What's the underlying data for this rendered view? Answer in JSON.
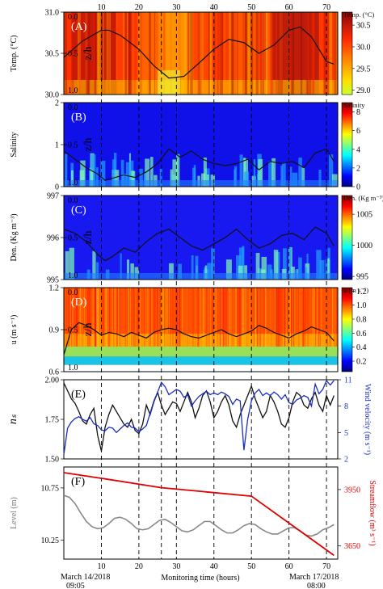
{
  "colors": {
    "heat": [
      "#8b0000",
      "#c41a0a",
      "#ff2a00",
      "#ff6a00",
      "#ffa500",
      "#ffe000",
      "#c8ff30"
    ],
    "jet": [
      "#00007f",
      "#0000ff",
      "#007fff",
      "#00ffff",
      "#7fff7f",
      "#ffff00",
      "#ff7f00",
      "#ff0000",
      "#7f0000"
    ],
    "overlay": "#111111",
    "ns_line": "#111111",
    "wind_line": "#1a2fbf",
    "level_line": "#888888",
    "streamflow_line": "#e00000"
  },
  "x_axis": {
    "ticks": [
      10,
      20,
      30,
      40,
      50,
      60,
      70
    ],
    "range": [
      0,
      73
    ],
    "label": "Monitoring time (hours)",
    "start_label": [
      "March 14/2018",
      "09:05"
    ],
    "end_label": [
      "March 17/2018",
      "08:00"
    ],
    "dashed_lines": [
      10,
      20,
      26,
      30,
      40,
      50,
      60,
      70
    ]
  },
  "chart_data": [
    {
      "type": "heatmap",
      "panel": "(A)",
      "left_ylabel": "Temp. (°C)",
      "left_ticks": [
        "31.0",
        "30.5",
        "30.0"
      ],
      "inner_ylabel": "z/h",
      "inner_ticks": [
        "0.0",
        "0.5",
        "1.0"
      ],
      "colorbar_title": "Temp. (°C)",
      "colorbar_ticks": [
        "30.5",
        "30.0",
        "29.5",
        "29.0"
      ],
      "colorbar_range": [
        28.9,
        30.8
      ],
      "overlay_ylim": [
        30.0,
        31.0
      ],
      "overlay_x": [
        0,
        5,
        10,
        12,
        15,
        20,
        24,
        28,
        32,
        36,
        40,
        44,
        48,
        52,
        56,
        60,
        63,
        66,
        70,
        72
      ],
      "overlay_y": [
        30.45,
        30.65,
        30.78,
        30.78,
        30.72,
        30.55,
        30.35,
        30.2,
        30.22,
        30.38,
        30.55,
        30.67,
        30.63,
        30.5,
        30.6,
        30.78,
        30.82,
        30.7,
        30.4,
        30.37
      ]
    },
    {
      "type": "heatmap",
      "panel": "(B)",
      "left_ylabel": "Salinity",
      "left_ticks": [
        "2",
        "1",
        "0"
      ],
      "inner_ylabel": "z/h",
      "inner_ticks": [
        "0.0",
        "0.5",
        "1.0"
      ],
      "colorbar_title": "Salinity",
      "colorbar_ticks": [
        "8",
        "6",
        "4",
        "2",
        "0"
      ],
      "colorbar_range": [
        0,
        9
      ],
      "overlay_ylim": [
        0,
        2
      ],
      "overlay_x": [
        0,
        3,
        6,
        9,
        11,
        13,
        16,
        19,
        22,
        25,
        28,
        31,
        34,
        37,
        40,
        43,
        46,
        49,
        52,
        55,
        58,
        61,
        64,
        67,
        70,
        72
      ],
      "overlay_y": [
        0.85,
        0.65,
        0.45,
        0.3,
        0.15,
        0.2,
        0.28,
        0.22,
        0.35,
        0.55,
        0.9,
        0.7,
        0.85,
        0.65,
        0.55,
        0.5,
        0.55,
        0.65,
        0.4,
        0.6,
        0.55,
        0.6,
        0.45,
        0.8,
        0.9,
        0.6
      ]
    },
    {
      "type": "heatmap",
      "panel": "(C)",
      "left_ylabel": "Den. (Kg m⁻³)",
      "left_ticks": [
        "997",
        "996",
        "995"
      ],
      "inner_ylabel": "z/h",
      "inner_ticks": [
        "0.0",
        "0.5",
        "1.0"
      ],
      "colorbar_title": "Den. (Kg m⁻³)",
      "colorbar_ticks": [
        "1005",
        "1000",
        "995"
      ],
      "colorbar_range": [
        994.5,
        1008
      ],
      "overlay_ylim": [
        995,
        997
      ],
      "overlay_x": [
        0,
        3,
        6,
        9,
        11,
        13,
        16,
        19,
        22,
        25,
        28,
        31,
        34,
        37,
        40,
        43,
        46,
        49,
        52,
        55,
        58,
        61,
        64,
        67,
        70,
        72
      ],
      "overlay_y": [
        996.2,
        996.1,
        995.9,
        995.6,
        995.45,
        995.55,
        995.75,
        995.65,
        995.9,
        996.1,
        996.2,
        996.0,
        995.8,
        995.7,
        995.85,
        996.0,
        996.2,
        995.95,
        995.75,
        995.85,
        996.05,
        996.1,
        995.95,
        996.25,
        996.1,
        995.8
      ]
    },
    {
      "type": "heatmap",
      "panel": "(D)",
      "left_ylabel": "u (m s⁻¹)",
      "left_ticks": [
        "1.2",
        "0.9",
        "0.6"
      ],
      "inner_ylabel": "z/h",
      "inner_ticks": [
        "0.0",
        "0.5",
        "1.0"
      ],
      "colorbar_title": "u (m s⁻¹)",
      "colorbar_ticks": [
        "1.2",
        "1.0",
        "0.8",
        "0.6",
        "0.4",
        "0.2"
      ],
      "colorbar_range": [
        0.05,
        1.25
      ],
      "overlay_ylim": [
        0.6,
        1.2
      ],
      "overlay_x": [
        0,
        2,
        4,
        6,
        8,
        10,
        12,
        14,
        16,
        18,
        20,
        22,
        24,
        26,
        28,
        30,
        32,
        34,
        36,
        38,
        40,
        42,
        44,
        46,
        48,
        50,
        52,
        54,
        56,
        58,
        60,
        62,
        64,
        66,
        68,
        70,
        72
      ],
      "overlay_y": [
        0.72,
        0.9,
        0.95,
        0.93,
        0.9,
        0.86,
        0.88,
        0.87,
        0.85,
        0.88,
        0.86,
        0.84,
        0.88,
        0.9,
        0.91,
        0.9,
        0.87,
        0.85,
        0.84,
        0.86,
        0.88,
        0.9,
        0.87,
        0.85,
        0.87,
        0.89,
        0.93,
        0.91,
        0.88,
        0.86,
        0.84,
        0.87,
        0.89,
        0.92,
        0.9,
        0.88,
        0.82
      ]
    },
    {
      "type": "line",
      "panel": "(E)",
      "left_ylabel": "nₛ",
      "left_ticks": [
        "2.00",
        "1.75",
        "1.50"
      ],
      "left_ylim": [
        1.5,
        2.0
      ],
      "right_ylabel": "Wind velocity (m s⁻¹)",
      "right_ticks": [
        "11",
        "8",
        "5",
        "2"
      ],
      "right_ylim": [
        2,
        11
      ],
      "series": [
        {
          "axis": "left",
          "x": [
            0,
            1,
            2,
            3,
            4,
            5,
            6,
            7,
            8,
            9,
            10,
            11,
            12,
            13,
            14,
            15,
            16,
            17,
            18,
            19,
            20,
            21,
            22,
            23,
            24,
            25,
            26,
            27,
            28,
            29,
            30,
            31,
            32,
            33,
            34,
            35,
            36,
            37,
            38,
            39,
            40,
            41,
            42,
            43,
            44,
            45,
            46,
            47,
            48,
            49,
            50,
            51,
            52,
            53,
            54,
            55,
            56,
            57,
            58,
            59,
            60,
            61,
            62,
            63,
            64,
            65,
            66,
            67,
            68,
            69,
            70,
            71,
            72
          ],
          "values": [
            1.98,
            1.93,
            1.88,
            1.85,
            1.8,
            1.74,
            1.72,
            1.78,
            1.82,
            1.65,
            1.55,
            1.7,
            1.78,
            1.84,
            1.8,
            1.76,
            1.72,
            1.7,
            1.75,
            1.68,
            1.66,
            1.72,
            1.84,
            1.78,
            1.86,
            1.92,
            1.84,
            1.78,
            1.82,
            1.86,
            1.85,
            1.8,
            1.86,
            1.92,
            1.86,
            1.76,
            1.82,
            1.9,
            1.93,
            1.86,
            1.76,
            1.8,
            1.86,
            1.9,
            1.84,
            1.74,
            1.7,
            1.78,
            1.84,
            1.9,
            1.96,
            1.88,
            1.82,
            1.76,
            1.8,
            1.9,
            1.86,
            1.8,
            1.72,
            1.7,
            1.76,
            1.86,
            1.92,
            1.9,
            1.84,
            1.82,
            1.88,
            1.92,
            1.84,
            1.8,
            1.9,
            1.84,
            1.9
          ]
        },
        {
          "axis": "right",
          "x": [
            0,
            1,
            2,
            3,
            4,
            5,
            6,
            7,
            8,
            9,
            10,
            11,
            12,
            13,
            14,
            15,
            16,
            17,
            18,
            19,
            20,
            21,
            22,
            23,
            24,
            25,
            26,
            27,
            28,
            29,
            30,
            31,
            32,
            33,
            34,
            35,
            36,
            37,
            38,
            39,
            40,
            41,
            42,
            43,
            44,
            45,
            46,
            47,
            48,
            49,
            50,
            51,
            52,
            53,
            54,
            55,
            56,
            57,
            58,
            59,
            60,
            61,
            62,
            63,
            64,
            65,
            66,
            67,
            68,
            69,
            70,
            71,
            72
          ],
          "values": [
            2.5,
            5.5,
            6.2,
            6.6,
            6.8,
            6.5,
            6.3,
            6.7,
            6.0,
            5.8,
            5.3,
            5.2,
            5.6,
            5.5,
            5.0,
            5.4,
            5.8,
            6.1,
            5.6,
            5.5,
            5.1,
            5.4,
            5.8,
            7.2,
            8.6,
            9.6,
            10.7,
            10.2,
            9.3,
            9.6,
            9.9,
            9.7,
            9.0,
            9.3,
            8.0,
            8.6,
            9.1,
            9.4,
            9.7,
            9.3,
            9.5,
            9.3,
            9.6,
            9.4,
            9.1,
            8.2,
            8.8,
            8.6,
            3.0,
            6.5,
            8.6,
            9.5,
            9.9,
            9.2,
            9.5,
            9.2,
            9.6,
            9.3,
            8.8,
            9.3,
            8.4,
            8.2,
            8.7,
            8.9,
            9.2,
            9.0,
            8.0,
            10.5,
            9.4,
            9.9,
            10.9,
            10.4,
            10.9
          ]
        }
      ]
    },
    {
      "type": "line",
      "panel": "(F)",
      "left_ylabel": "Level (m)",
      "left_ticks": [
        "10.75",
        "10.25"
      ],
      "left_ylim": [
        10.07,
        10.95
      ],
      "right_ylabel": "Streamflow (m³ s⁻¹)",
      "right_ticks": [
        "3950",
        "3650"
      ],
      "right_ylim": [
        3580,
        4070
      ],
      "series": [
        {
          "axis": "left",
          "x": [
            0,
            1.5,
            3,
            4.5,
            6,
            7.5,
            9,
            10.5,
            12,
            13.5,
            15,
            16.5,
            18,
            19.5,
            21,
            22.5,
            24,
            25.5,
            27,
            28.5,
            30,
            31.5,
            33,
            34.5,
            36,
            37.5,
            39,
            40.5,
            42,
            43.5,
            45,
            46.5,
            48,
            49.5,
            51,
            52.5,
            54,
            55.5,
            57,
            58.5,
            60,
            61.5,
            63,
            64.5,
            66,
            67.5,
            69,
            70.5,
            72
          ],
          "values": [
            10.68,
            10.66,
            10.6,
            10.51,
            10.43,
            10.38,
            10.36,
            10.37,
            10.41,
            10.46,
            10.47,
            10.45,
            10.41,
            10.36,
            10.35,
            10.36,
            10.4,
            10.44,
            10.45,
            10.42,
            10.38,
            10.34,
            10.33,
            10.35,
            10.39,
            10.43,
            10.43,
            10.39,
            10.35,
            10.32,
            10.32,
            10.35,
            10.39,
            10.41,
            10.4,
            10.36,
            10.33,
            10.31,
            10.31,
            10.34,
            10.37,
            10.37,
            10.34,
            10.3,
            10.29,
            10.31,
            10.35,
            10.37,
            10.4
          ]
        },
        {
          "axis": "right",
          "x": [
            0,
            10,
            26,
            50,
            72
          ],
          "values": [
            4040,
            4010,
            3960,
            3915,
            3600
          ]
        }
      ]
    }
  ]
}
